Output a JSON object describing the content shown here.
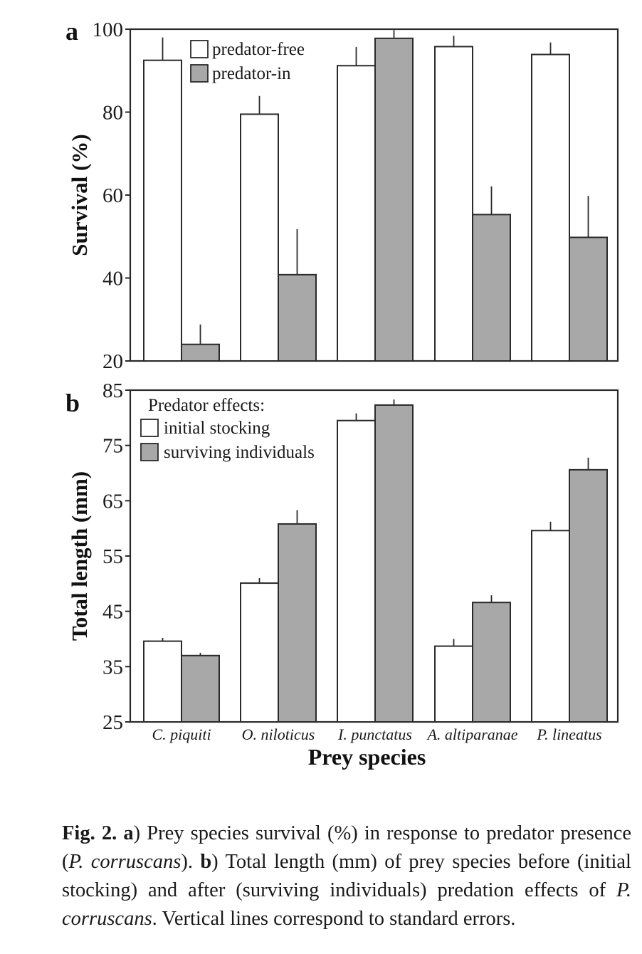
{
  "chart_data": [
    {
      "type": "bar",
      "panel_label": "a",
      "ylabel": "Survival (%)",
      "ylim": [
        20,
        100
      ],
      "yticks": [
        "100",
        "80",
        "60",
        "40",
        "20"
      ],
      "categories": [
        "C. piquiti",
        "O. niloticus",
        "I. punctatus",
        "A. altiparanae",
        "P. lineatus"
      ],
      "legend_title": "",
      "legend_placement": "top-left",
      "grid": false,
      "series": [
        {
          "name": "predator-free",
          "color": "#ffffff",
          "values": [
            92.5,
            79.5,
            91.2,
            95.8,
            93.9
          ],
          "errors": [
            5.5,
            4.4,
            4.5,
            2.6,
            2.9
          ]
        },
        {
          "name": "predator-in",
          "color": "#a8a8a8",
          "values": [
            24.0,
            40.8,
            97.8,
            55.3,
            49.8
          ],
          "errors": [
            4.8,
            11.0,
            2.0,
            6.8,
            10.0
          ]
        }
      ]
    },
    {
      "type": "bar",
      "panel_label": "b",
      "ylabel": "Total length (mm)",
      "xlabel": "Prey species",
      "ylim": [
        25,
        85
      ],
      "yticks": [
        "85",
        "75",
        "65",
        "55",
        "45",
        "35",
        "25"
      ],
      "categories": [
        "C. piquiti",
        "O. niloticus",
        "I. punctatus",
        "A. altiparanae",
        "P. lineatus"
      ],
      "legend_title": "Predator effects:",
      "legend_placement": "top-left",
      "grid": false,
      "series": [
        {
          "name": "initial stocking",
          "color": "#ffffff",
          "values": [
            39.6,
            50.1,
            79.5,
            38.7,
            59.6
          ],
          "errors": [
            0.6,
            0.9,
            1.3,
            1.3,
            1.6
          ]
        },
        {
          "name": "surviving individuals",
          "color": "#a8a8a8",
          "values": [
            37.0,
            60.8,
            82.3,
            46.6,
            70.6
          ],
          "errors": [
            0.5,
            2.5,
            1.0,
            1.3,
            2.2
          ]
        }
      ]
    }
  ],
  "caption": {
    "fig_label": "Fig. 2.",
    "a_label": "a",
    "t1": ") Prey species survival (%) in response to predator presence (",
    "species": "P. corruscans",
    "t2": "). ",
    "b_label": "b",
    "t3": ") Total length (mm) of prey species before (initial stocking) and after (surviving individuals) predation effects of ",
    "t4": ". Vertical lines correspond to standard errors."
  }
}
